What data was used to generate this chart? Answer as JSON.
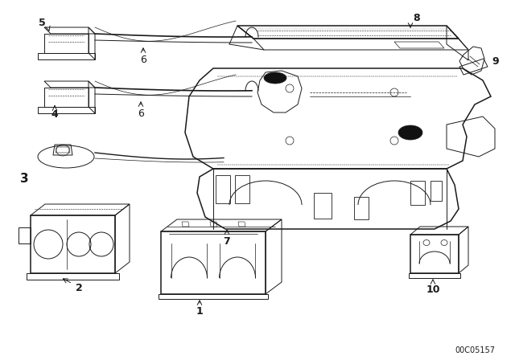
{
  "background_color": "#ffffff",
  "catalog_number": "00C05157",
  "fig_width": 6.4,
  "fig_height": 4.48,
  "dpi": 100,
  "color": "#1a1a1a",
  "lw": 0.7,
  "lw_thick": 1.1
}
